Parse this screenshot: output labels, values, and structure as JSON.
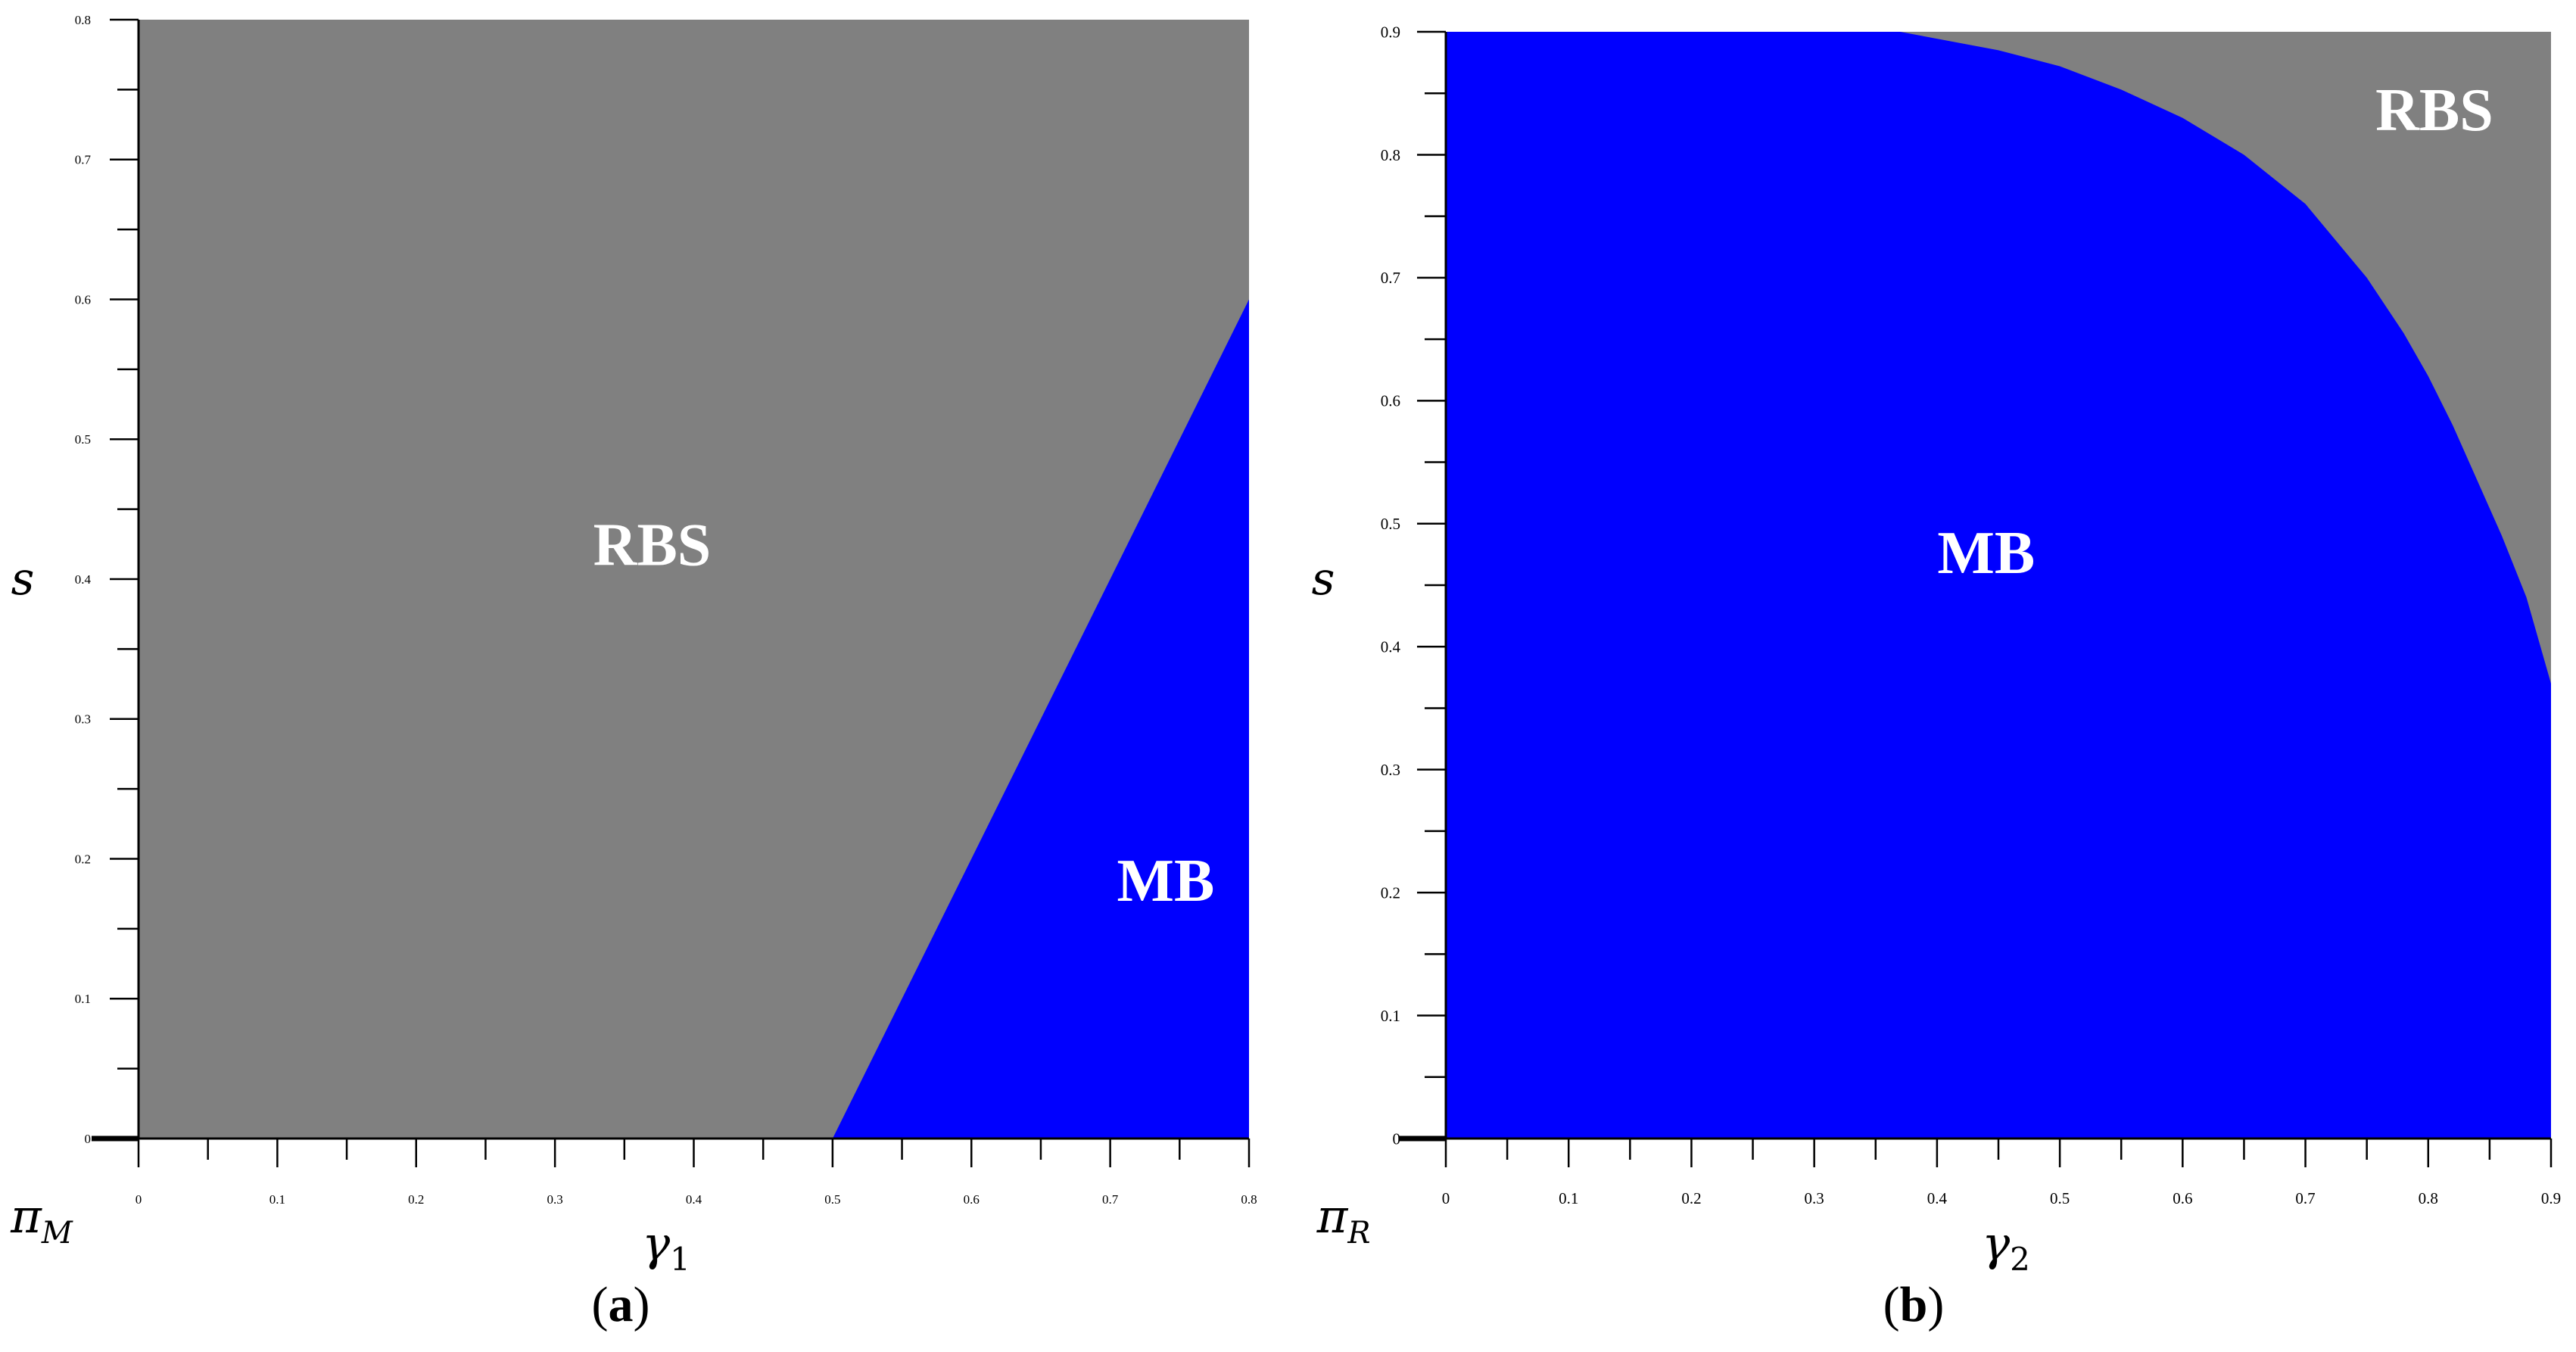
{
  "colors": {
    "region_rbs": "#808080",
    "region_mb": "#0000ff",
    "axis": "#000000",
    "label_text": "#ffffff"
  },
  "chart_data": [
    {
      "type": "area",
      "panel": "(a)",
      "caption_letter": "a",
      "xlabel": "γ",
      "xlabel_sub": "1",
      "ylabel": "s",
      "corner_label": "π",
      "corner_label_sub": "M",
      "xlim": [
        0,
        0.8
      ],
      "ylim": [
        0,
        0.8
      ],
      "x_ticks": [
        0,
        0.1,
        0.2,
        0.3,
        0.4,
        0.5,
        0.6,
        0.7,
        0.8
      ],
      "x_tick_labels": [
        "0",
        "0.1",
        "0.2",
        "0.3",
        "0.4",
        "0.5",
        "0.6",
        "0.7",
        "0.8"
      ],
      "y_ticks": [
        0,
        0.1,
        0.2,
        0.3,
        0.4,
        0.5,
        0.6,
        0.7,
        0.8
      ],
      "y_tick_labels": [
        "0",
        "0.1",
        "0.2",
        "0.3",
        "0.4",
        "0.5",
        "0.6",
        "0.7",
        "0.8"
      ],
      "boundary": {
        "x": [
          0.5,
          0.8
        ],
        "y": [
          0,
          0.6
        ]
      },
      "regions": [
        {
          "name": "RBS",
          "label_at": [
            0.37,
            0.41
          ],
          "side": "above"
        },
        {
          "name": "MB",
          "label_at": [
            0.74,
            0.17
          ],
          "side": "below"
        }
      ],
      "grid": false
    },
    {
      "type": "area",
      "panel": "(b)",
      "caption_letter": "b",
      "xlabel": "γ",
      "xlabel_sub": "2",
      "ylabel": "s",
      "corner_label": "π",
      "corner_label_sub": "R",
      "xlim": [
        0,
        0.9
      ],
      "ylim": [
        0,
        0.9
      ],
      "x_ticks": [
        0,
        0.1,
        0.2,
        0.3,
        0.4,
        0.5,
        0.6,
        0.7,
        0.8,
        0.9
      ],
      "x_tick_labels": [
        "0",
        "0.1",
        "0.2",
        "0.3",
        "0.4",
        "0.5",
        "0.6",
        "0.7",
        "0.8",
        "0.9"
      ],
      "y_ticks": [
        0,
        0.1,
        0.2,
        0.3,
        0.4,
        0.5,
        0.6,
        0.7,
        0.8,
        0.9
      ],
      "y_tick_labels": [
        "0",
        "0.1",
        "0.2",
        "0.3",
        "0.4",
        "0.5",
        "0.6",
        "0.7",
        "0.8",
        "0.9"
      ],
      "boundary": {
        "x": [
          0.37,
          0.45,
          0.5,
          0.55,
          0.6,
          0.65,
          0.7,
          0.75,
          0.78,
          0.8,
          0.82,
          0.84,
          0.86,
          0.88,
          0.9
        ],
        "y": [
          0.9,
          0.885,
          0.872,
          0.853,
          0.83,
          0.8,
          0.76,
          0.7,
          0.655,
          0.62,
          0.58,
          0.535,
          0.49,
          0.44,
          0.37
        ]
      },
      "regions": [
        {
          "name": "RBS",
          "label_at": [
            0.805,
            0.82
          ],
          "side": "above"
        },
        {
          "name": "MB",
          "label_at": [
            0.44,
            0.46
          ],
          "side": "below"
        }
      ],
      "grid": false
    }
  ]
}
